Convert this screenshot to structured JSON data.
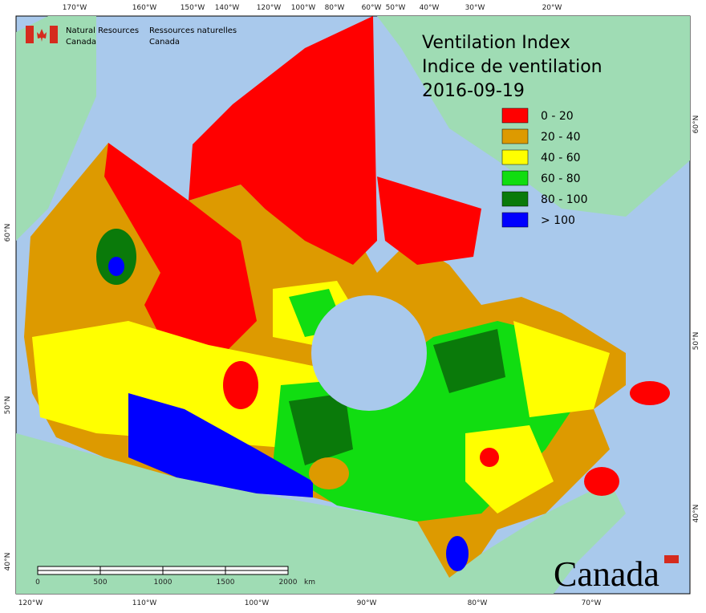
{
  "header": {
    "agency_en": [
      "Natural Resources",
      "Canada"
    ],
    "agency_fr": [
      "Ressources naturelles",
      "Canada"
    ],
    "title": [
      "Ventilation Index",
      "Indice de ventilation",
      "2016-09-19"
    ],
    "wordmark": "Canada"
  },
  "legend": [
    {
      "label": "0 - 20",
      "color": "#ff0000"
    },
    {
      "label": "20 - 40",
      "color": "#dd9a00"
    },
    {
      "label": "40 - 60",
      "color": "#ffff00"
    },
    {
      "label": "60 - 80",
      "color": "#11dd11"
    },
    {
      "label": "80 - 100",
      "color": "#0a7a0a"
    },
    {
      "label": "> 100",
      "color": "#0000ff"
    }
  ],
  "graticule": {
    "top": [
      "170°W",
      "160°W",
      "150°W",
      "140°W",
      "120°W",
      "100°W",
      "80°W",
      "60°W",
      "50°W",
      "40°W",
      "30°W",
      "20°W"
    ],
    "bottom": [
      "120°W",
      "110°W",
      "100°W",
      "90°W",
      "80°W",
      "70°W"
    ],
    "left": [
      "60°N",
      "50°N",
      "40°N"
    ],
    "right": [
      "60°N",
      "50°N",
      "40°N"
    ]
  },
  "scale": {
    "labels": [
      "0",
      "500",
      "1000",
      "1500",
      "2000"
    ],
    "unit": "km"
  }
}
